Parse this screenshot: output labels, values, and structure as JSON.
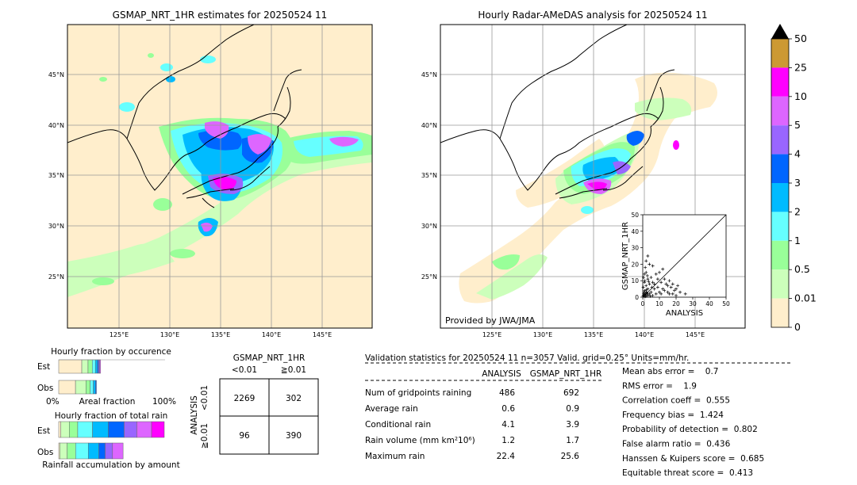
{
  "maps": {
    "left_title": "GSMAP_NRT_1HR estimates for 20250524 11",
    "right_title": "Hourly Radar-AMeDAS analysis for 20250524 11",
    "provider": "Provided by JWA/JMA",
    "lat_labels": [
      "45°N",
      "40°N",
      "35°N",
      "30°N",
      "25°N"
    ],
    "lon_labels": [
      "125°E",
      "130°E",
      "135°E",
      "140°E",
      "145°E"
    ]
  },
  "colorbar": {
    "labels": [
      "50",
      "25",
      "10",
      "5",
      "4",
      "3",
      "2",
      "1",
      "0.5",
      "0.01",
      "0"
    ],
    "colors": [
      "#cc9933",
      "#ff00ff",
      "#dd66ff",
      "#9966ff",
      "#0066ff",
      "#00bbff",
      "#66ffff",
      "#99ff99",
      "#ccffbb",
      "#ffeecc"
    ],
    "extend_color": "#000000"
  },
  "fraction_occurrence": {
    "title": "Hourly fraction by occurence",
    "rows": [
      "Est",
      "Obs"
    ],
    "axis_labels": [
      "0%",
      "Areal fraction",
      "100%"
    ]
  },
  "fraction_total": {
    "title": "Hourly fraction of total rain",
    "rows": [
      "Est",
      "Obs"
    ],
    "footer": "Rainfall accumulation by amount"
  },
  "contingency": {
    "title": "GSMAP_NRT_1HR",
    "col_labels": [
      "<0.01",
      "≧0.01"
    ],
    "row_axis": "ANALYSIS",
    "row_labels": [
      "<0.01",
      "≧0.01"
    ],
    "cells": [
      [
        "2269",
        "302"
      ],
      [
        "96",
        "390"
      ]
    ]
  },
  "validation": {
    "header": "Validation statistics for 20250524 11  n=3057 Valid. grid=0.25° Units=mm/hr.",
    "col_analysis": "ANALYSIS",
    "col_gsmap": "GSMAP_NRT_1HR",
    "rows": [
      {
        "label": "Num of gridpoints raining",
        "analysis": "486",
        "gsmap": "692"
      },
      {
        "label": "Average rain",
        "analysis": "0.6",
        "gsmap": "0.9"
      },
      {
        "label": "Conditional rain",
        "analysis": "4.1",
        "gsmap": "3.9"
      },
      {
        "label": "Rain volume (mm km²10⁶)",
        "analysis": "1.2",
        "gsmap": "1.7"
      },
      {
        "label": "Maximum rain",
        "analysis": "22.4",
        "gsmap": "25.6"
      }
    ],
    "scores": [
      "Mean abs error =    0.7",
      "RMS error =    1.9",
      "Correlation coeff =  0.555",
      "Frequency bias =  1.424",
      "Probability of detection =  0.802",
      "False alarm ratio =  0.436",
      "Hanssen & Kuipers score =  0.685",
      "Equitable threat score =  0.413"
    ]
  },
  "chart_data": [
    {
      "type": "scatter",
      "xlabel": "ANALYSIS",
      "ylabel": "GSMAP_NRT_1HR",
      "xlim": [
        0,
        50
      ],
      "ylim": [
        0,
        50
      ],
      "xticks": [
        "0",
        "10",
        "20",
        "30",
        "40",
        "50"
      ],
      "yticks": [
        "0",
        "10",
        "20",
        "30",
        "40",
        "50"
      ],
      "points": [
        [
          0.5,
          1
        ],
        [
          1,
          0.5
        ],
        [
          1.5,
          2
        ],
        [
          2,
          1
        ],
        [
          0.8,
          3
        ],
        [
          2.5,
          2.5
        ],
        [
          3,
          1.2
        ],
        [
          1.2,
          4
        ],
        [
          0.3,
          6
        ],
        [
          4,
          2
        ],
        [
          2,
          7
        ],
        [
          5,
          3
        ],
        [
          1,
          9
        ],
        [
          3,
          5
        ],
        [
          6,
          1
        ],
        [
          0.5,
          12
        ],
        [
          2,
          15
        ],
        [
          3,
          11
        ],
        [
          4,
          8
        ],
        [
          1.5,
          18
        ],
        [
          2,
          22
        ],
        [
          3,
          25
        ],
        [
          1,
          14
        ],
        [
          5,
          12
        ],
        [
          6,
          9
        ],
        [
          7,
          5
        ],
        [
          8,
          14
        ],
        [
          9,
          6
        ],
        [
          10,
          3
        ],
        [
          11,
          9
        ],
        [
          12,
          5
        ],
        [
          13,
          11
        ],
        [
          14,
          8
        ],
        [
          15,
          3
        ],
        [
          16,
          10
        ],
        [
          17,
          6
        ],
        [
          18,
          2
        ],
        [
          19,
          4
        ],
        [
          20,
          1
        ],
        [
          21,
          7
        ],
        [
          22.4,
          3
        ],
        [
          8,
          2
        ],
        [
          9,
          11
        ],
        [
          12,
          17
        ],
        [
          4,
          20
        ],
        [
          2,
          3
        ],
        [
          3,
          2
        ],
        [
          1,
          1.5
        ],
        [
          0.2,
          0.8
        ],
        [
          1.8,
          0.4
        ],
        [
          0.6,
          2.2
        ],
        [
          2.2,
          4.4
        ],
        [
          5.5,
          6
        ],
        [
          7,
          8
        ],
        [
          4.5,
          0.6
        ],
        [
          3.5,
          9.5
        ],
        [
          10,
          15
        ],
        [
          6,
          19
        ],
        [
          2.8,
          13
        ],
        [
          1.3,
          10
        ],
        [
          11,
          2
        ],
        [
          13,
          4
        ],
        [
          15,
          7
        ],
        [
          16,
          2
        ],
        [
          18,
          8
        ],
        [
          20,
          5
        ],
        [
          25.6,
          2
        ]
      ],
      "diagonal": true
    },
    {
      "type": "bar",
      "title": "Hourly fraction by occurence",
      "series": [
        {
          "name": "Est",
          "values": [
            0.22,
            0.06,
            0.04,
            0.03,
            0.02,
            0.01,
            0.01,
            0.01,
            0.0
          ],
          "colors": [
            "#ffeecc",
            "#ccffbb",
            "#99ff99",
            "#66ffff",
            "#00bbff",
            "#0066ff",
            "#9966ff",
            "#dd66ff",
            "#ff00ff"
          ]
        },
        {
          "name": "Obs",
          "values": [
            0.16,
            0.1,
            0.04,
            0.03,
            0.02,
            0.01,
            0.0,
            0.0,
            0.0
          ],
          "colors": [
            "#ffeecc",
            "#ccffbb",
            "#99ff99",
            "#66ffff",
            "#00bbff",
            "#0066ff",
            "#9966ff",
            "#dd66ff",
            "#ff00ff"
          ]
        }
      ]
    },
    {
      "type": "bar",
      "title": "Hourly fraction of total rain",
      "series": [
        {
          "name": "Est",
          "values": [
            0.02,
            0.08,
            0.08,
            0.14,
            0.15,
            0.15,
            0.12,
            0.14,
            0.12
          ],
          "colors": [
            "#ffeecc",
            "#ccffbb",
            "#99ff99",
            "#66ffff",
            "#00bbff",
            "#0066ff",
            "#9966ff",
            "#dd66ff",
            "#ff00ff"
          ]
        },
        {
          "name": "Obs",
          "values": [
            0.01,
            0.07,
            0.08,
            0.12,
            0.1,
            0.06,
            0.07,
            0.1,
            0.0
          ],
          "colors": [
            "#ffeecc",
            "#ccffbb",
            "#99ff99",
            "#66ffff",
            "#00bbff",
            "#0066ff",
            "#9966ff",
            "#dd66ff",
            "#ff00ff"
          ]
        }
      ]
    }
  ]
}
